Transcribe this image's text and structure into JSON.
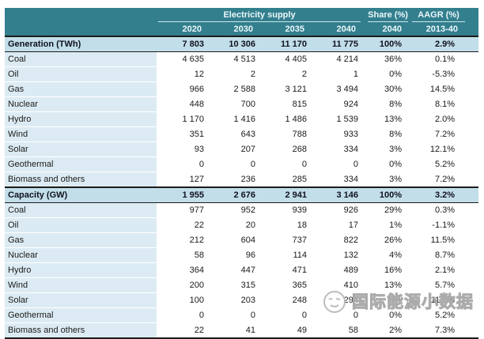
{
  "chart_data": {
    "type": "table",
    "column_groups": [
      {
        "label": "Electricity supply",
        "span": 4
      },
      {
        "label": "Share (%)",
        "span": 1
      },
      {
        "label": "AAGR (%)",
        "span": 1
      }
    ],
    "columns": [
      "2020",
      "2030",
      "2035",
      "2040",
      "2040",
      "2013-40"
    ],
    "rows": [
      {
        "label": "Generation (TWh)",
        "type": "section",
        "values": [
          "7 803",
          "10 306",
          "11 170",
          "11 775",
          "100%",
          "2.9%"
        ]
      },
      {
        "label": "Coal",
        "type": "data",
        "values": [
          "4 635",
          "4 513",
          "4 405",
          "4 214",
          "36%",
          "0.1%"
        ]
      },
      {
        "label": "Oil",
        "type": "data",
        "values": [
          "12",
          "2",
          "2",
          "1",
          "0%",
          "-5.3%"
        ]
      },
      {
        "label": "Gas",
        "type": "data",
        "values": [
          "966",
          "2 588",
          "3 121",
          "3 494",
          "30%",
          "14.5%"
        ]
      },
      {
        "label": "Nuclear",
        "type": "data",
        "values": [
          "448",
          "700",
          "815",
          "924",
          "8%",
          "8.1%"
        ]
      },
      {
        "label": "Hydro",
        "type": "data",
        "values": [
          "1 170",
          "1 416",
          "1 486",
          "1 539",
          "13%",
          "2.0%"
        ]
      },
      {
        "label": "Wind",
        "type": "data",
        "values": [
          "351",
          "643",
          "788",
          "933",
          "8%",
          "7.2%"
        ]
      },
      {
        "label": "Solar",
        "type": "data",
        "values": [
          "93",
          "207",
          "268",
          "334",
          "3%",
          "12.1%"
        ]
      },
      {
        "label": "Geothermal",
        "type": "data",
        "values": [
          "0",
          "0",
          "0",
          "0",
          "0%",
          "5.2%"
        ]
      },
      {
        "label": "Biomass and others",
        "type": "data",
        "values": [
          "127",
          "236",
          "285",
          "334",
          "3%",
          "7.2%"
        ]
      },
      {
        "label": "Capacity (GW)",
        "type": "section",
        "values": [
          "1 955",
          "2 676",
          "2 941",
          "3 146",
          "100%",
          "3.2%"
        ]
      },
      {
        "label": "Coal",
        "type": "data",
        "values": [
          "977",
          "952",
          "939",
          "926",
          "29%",
          "0.3%"
        ]
      },
      {
        "label": "Oil",
        "type": "data",
        "values": [
          "22",
          "20",
          "18",
          "17",
          "1%",
          "-1.1%"
        ]
      },
      {
        "label": "Gas",
        "type": "data",
        "values": [
          "212",
          "604",
          "737",
          "822",
          "26%",
          "11.5%"
        ]
      },
      {
        "label": "Nuclear",
        "type": "data",
        "values": [
          "58",
          "96",
          "114",
          "132",
          "4%",
          "8.7%"
        ]
      },
      {
        "label": "Hydro",
        "type": "data",
        "values": [
          "364",
          "447",
          "471",
          "489",
          "16%",
          "2.1%"
        ]
      },
      {
        "label": "Wind",
        "type": "data",
        "values": [
          "200",
          "315",
          "365",
          "410",
          "13%",
          "5.7%"
        ]
      },
      {
        "label": "Solar",
        "type": "data",
        "values": [
          "100",
          "203",
          "248",
          "294",
          "9%",
          "11.0%"
        ]
      },
      {
        "label": "Geothermal",
        "type": "data",
        "values": [
          "0",
          "0",
          "0",
          "0",
          "0%",
          "5.2%"
        ]
      },
      {
        "label": "Biomass and others",
        "type": "data",
        "values": [
          "22",
          "41",
          "49",
          "58",
          "2%",
          "7.3%"
        ]
      }
    ]
  },
  "watermark": {
    "text": "国际能源小数据",
    "logo_icon": "wechat-account-logo"
  },
  "colors": {
    "header_bg": "#337F8E",
    "header_text": "#ECF7FA",
    "label_column_bg": "#DCEBF3",
    "section_row_bg": "#C2DEE9",
    "dark_border": "#1B1B1B",
    "watermark_gray": "#ABABAB"
  }
}
